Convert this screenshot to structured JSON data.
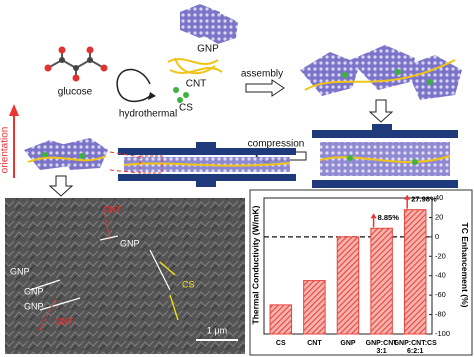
{
  "diagram": {
    "gnp": "GNP",
    "cnt": "CNT",
    "cs": "CS",
    "glucose": "glucose",
    "hydrothermal": "hydrothermal",
    "assembly": "assembly",
    "compression": "compression",
    "orientation": "orientation"
  },
  "sem": {
    "labels": [
      "CNT",
      "GNP",
      "GNP",
      "GNP",
      "GNP",
      "CNT",
      "CS"
    ],
    "scale_bar": "1 μm"
  },
  "chart_data": {
    "type": "bar",
    "ylabel": "Thermal Conductivity (W/mK)",
    "y2label": "TC Enhancement (%)",
    "categories": [
      [
        "CS"
      ],
      [
        "CNT"
      ],
      [
        "GNP"
      ],
      [
        "GNP:CNT",
        "3:1"
      ],
      [
        "GNP:CNT:CS",
        "6:2:1"
      ]
    ],
    "values": [
      -70,
      -45,
      0,
      8.85,
      27.98
    ],
    "value_labels": [
      null,
      null,
      null,
      "8.85%",
      "27.98%"
    ],
    "color": "#e8453c",
    "ylim": [
      -100,
      40
    ],
    "yticks": [
      -100,
      -80,
      -60,
      -40,
      -20,
      0,
      20,
      40
    ],
    "reference_line": 0
  }
}
